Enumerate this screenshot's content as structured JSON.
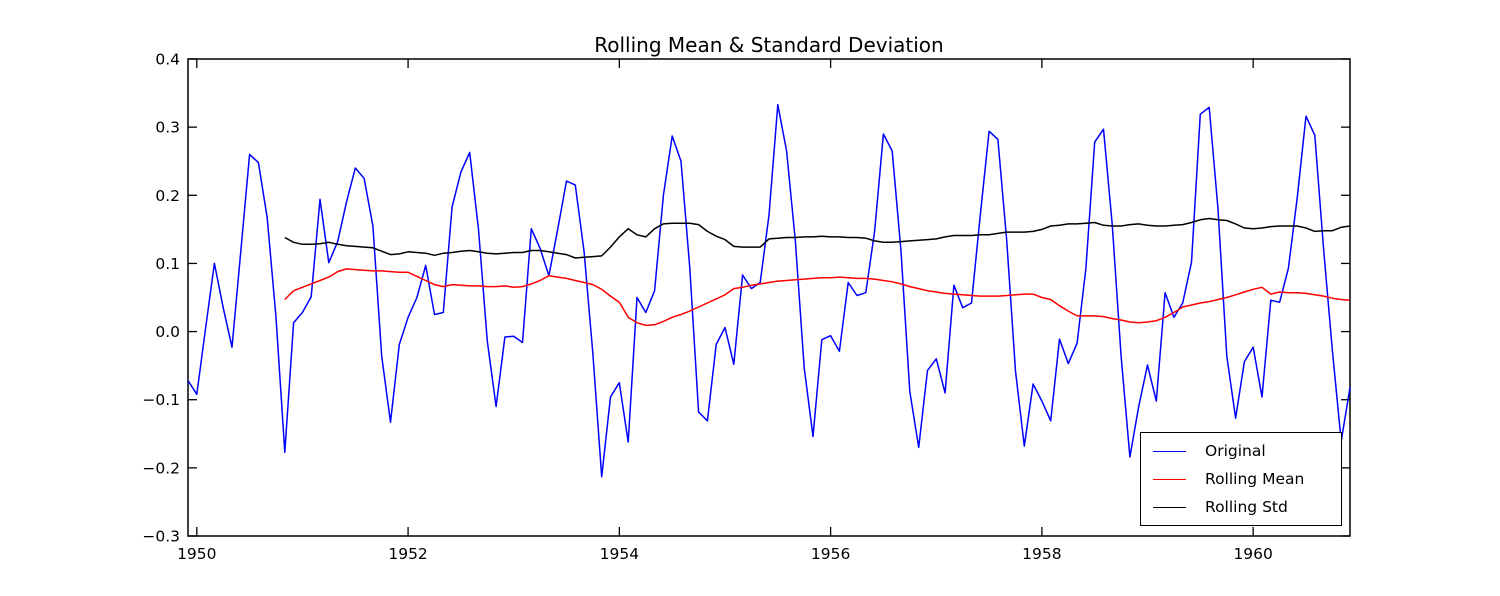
{
  "title": "Rolling Mean & Standard Deviation",
  "colors": {
    "background": "#ffffff",
    "axis": "#000000",
    "original": "#0000ff",
    "rolling_mean": "#ff0000",
    "rolling_std": "#000000"
  },
  "legend": {
    "items": [
      {
        "label": "Original",
        "color_key": "original"
      },
      {
        "label": "Rolling Mean",
        "color_key": "rolling_mean"
      },
      {
        "label": "Rolling Std",
        "color_key": "rolling_std"
      }
    ]
  },
  "chart_data": {
    "type": "line",
    "title": "Rolling Mean & Standard Deviation",
    "xlabel": "",
    "ylabel": "",
    "grid": false,
    "legend_position": "lower right",
    "x_axis": {
      "unit": "monthly",
      "start": "1949-12",
      "end": "1960-12",
      "tick_labels": [
        "1950",
        "1952",
        "1954",
        "1956",
        "1958",
        "1960"
      ],
      "tick_month_indices": [
        1,
        25,
        49,
        73,
        97,
        121
      ]
    },
    "y_axis": {
      "lim": [
        -0.3,
        0.4
      ],
      "tick_labels": [
        "0.4",
        "0.3",
        "0.2",
        "0.1",
        "0.0",
        "−0.1",
        "−0.2",
        "−0.3"
      ],
      "tick_values": [
        0.4,
        0.3,
        0.2,
        0.1,
        0.0,
        -0.1,
        -0.2,
        -0.3
      ]
    },
    "series": [
      {
        "name": "Original",
        "color": "#0000ff",
        "start_month_index": 0,
        "values": [
          -0.072,
          -0.092,
          0.005,
          0.1,
          0.035,
          -0.023,
          0.118,
          0.26,
          0.248,
          0.167,
          0.021,
          -0.177,
          0.013,
          0.028,
          0.051,
          0.194,
          0.101,
          0.132,
          0.19,
          0.24,
          0.225,
          0.155,
          -0.036,
          -0.133,
          -0.019,
          0.021,
          0.05,
          0.097,
          0.025,
          0.028,
          0.183,
          0.234,
          0.263,
          0.15,
          -0.014,
          -0.11,
          -0.008,
          -0.007,
          -0.016,
          0.151,
          0.122,
          0.082,
          0.15,
          0.221,
          0.215,
          0.117,
          -0.033,
          -0.213,
          -0.096,
          -0.075,
          -0.162,
          0.05,
          0.028,
          0.06,
          0.2,
          0.287,
          0.25,
          0.093,
          -0.118,
          -0.131,
          -0.019,
          0.006,
          -0.048,
          0.083,
          0.063,
          0.072,
          0.171,
          0.333,
          0.265,
          0.132,
          -0.053,
          -0.154,
          -0.012,
          -0.006,
          -0.029,
          0.072,
          0.053,
          0.057,
          0.147,
          0.29,
          0.265,
          0.118,
          -0.088,
          -0.17,
          -0.057,
          -0.04,
          -0.09,
          0.068,
          0.035,
          0.042,
          0.171,
          0.294,
          0.282,
          0.134,
          -0.058,
          -0.168,
          -0.077,
          -0.102,
          -0.131,
          -0.011,
          -0.047,
          -0.017,
          0.093,
          0.278,
          0.297,
          0.156,
          -0.036,
          -0.184,
          -0.11,
          -0.049,
          -0.102,
          0.057,
          0.021,
          0.042,
          0.102,
          0.319,
          0.329,
          0.18,
          -0.036,
          -0.127,
          -0.044,
          -0.023,
          -0.096,
          0.046,
          0.043,
          0.093,
          0.196,
          0.316,
          0.288,
          0.121,
          -0.028,
          -0.161,
          -0.082
        ]
      },
      {
        "name": "Rolling Mean",
        "color": "#ff0000",
        "start_month_index": 11,
        "values": [
          0.047,
          0.06,
          0.065,
          0.07,
          0.075,
          0.08,
          0.088,
          0.092,
          0.091,
          0.09,
          0.089,
          0.089,
          0.088,
          0.087,
          0.087,
          0.081,
          0.075,
          0.069,
          0.066,
          0.069,
          0.068,
          0.067,
          0.067,
          0.066,
          0.066,
          0.067,
          0.065,
          0.066,
          0.07,
          0.075,
          0.082,
          0.08,
          0.078,
          0.075,
          0.072,
          0.069,
          0.062,
          0.052,
          0.043,
          0.021,
          0.013,
          0.009,
          0.01,
          0.015,
          0.021,
          0.025,
          0.03,
          0.036,
          0.042,
          0.048,
          0.054,
          0.063,
          0.065,
          0.068,
          0.07,
          0.072,
          0.074,
          0.075,
          0.076,
          0.077,
          0.078,
          0.079,
          0.079,
          0.08,
          0.079,
          0.078,
          0.078,
          0.077,
          0.075,
          0.073,
          0.07,
          0.066,
          0.063,
          0.06,
          0.058,
          0.056,
          0.055,
          0.054,
          0.053,
          0.052,
          0.052,
          0.052,
          0.053,
          0.054,
          0.055,
          0.055,
          0.05,
          0.047,
          0.038,
          0.03,
          0.023,
          0.023,
          0.023,
          0.022,
          0.019,
          0.017,
          0.014,
          0.013,
          0.014,
          0.016,
          0.021,
          0.028,
          0.036,
          0.039,
          0.042,
          0.044,
          0.047,
          0.05,
          0.054,
          0.058,
          0.062,
          0.065,
          0.055,
          0.058,
          0.057,
          0.057,
          0.056,
          0.054,
          0.052,
          0.049,
          0.047,
          0.046
        ]
      },
      {
        "name": "Rolling Std",
        "color": "#000000",
        "start_month_index": 11,
        "values": [
          0.138,
          0.131,
          0.128,
          0.128,
          0.129,
          0.131,
          0.128,
          0.126,
          0.125,
          0.124,
          0.123,
          0.118,
          0.113,
          0.114,
          0.117,
          0.116,
          0.115,
          0.112,
          0.115,
          0.116,
          0.118,
          0.119,
          0.117,
          0.115,
          0.114,
          0.115,
          0.116,
          0.116,
          0.119,
          0.119,
          0.117,
          0.115,
          0.113,
          0.108,
          0.109,
          0.11,
          0.111,
          0.124,
          0.139,
          0.151,
          0.142,
          0.139,
          0.151,
          0.158,
          0.159,
          0.159,
          0.159,
          0.157,
          0.147,
          0.14,
          0.135,
          0.125,
          0.124,
          0.124,
          0.124,
          0.136,
          0.137,
          0.138,
          0.138,
          0.139,
          0.139,
          0.14,
          0.139,
          0.139,
          0.138,
          0.138,
          0.137,
          0.133,
          0.131,
          0.131,
          0.132,
          0.133,
          0.134,
          0.135,
          0.136,
          0.139,
          0.141,
          0.141,
          0.141,
          0.142,
          0.142,
          0.144,
          0.146,
          0.146,
          0.146,
          0.147,
          0.15,
          0.155,
          0.156,
          0.158,
          0.158,
          0.159,
          0.16,
          0.156,
          0.155,
          0.155,
          0.157,
          0.158,
          0.156,
          0.155,
          0.155,
          0.156,
          0.157,
          0.16,
          0.164,
          0.166,
          0.164,
          0.163,
          0.158,
          0.152,
          0.151,
          0.152,
          0.154,
          0.155,
          0.155,
          0.155,
          0.152,
          0.147,
          0.148,
          0.148,
          0.153,
          0.155
        ]
      }
    ]
  }
}
